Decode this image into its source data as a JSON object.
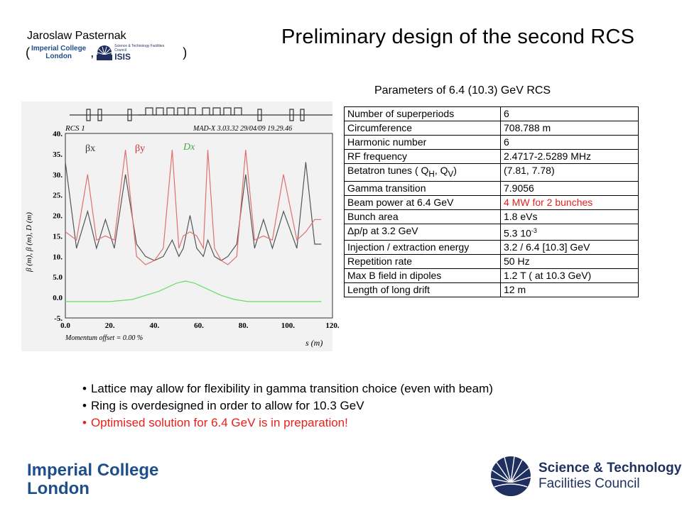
{
  "header": {
    "author": "Jaroslaw Pasternak",
    "open_paren": "(",
    "comma": ",",
    "close_paren": ")",
    "mini_logo_ic_line1": "Imperial College",
    "mini_logo_ic_line2": "London",
    "mini_logo_stfc_line1": "Science & Technology Facilities Council",
    "mini_logo_stfc_line2": "ISIS",
    "title": "Preliminary design of the second RCS"
  },
  "plot": {
    "top_left_label": "RCS 1",
    "top_right_label": "MAD-X 3.03.32  29/04/09 19.29.46",
    "ylabel": "β (m), β (m), D (m)",
    "xlabel": "s (m)",
    "legend_bx": "βx",
    "legend_by": "βy",
    "legend_dx": "Dx",
    "momentum_offset": "Momentum offset =    0.00 %",
    "colors": {
      "bx": "#555555",
      "by": "#e07070",
      "dx": "#66dd66"
    }
  },
  "chart_data": {
    "type": "line",
    "x_ticks": [
      "0.0",
      "20.",
      "40.",
      "60.",
      "80.",
      "100.",
      "120."
    ],
    "y_ticks": [
      "40.",
      "35.",
      "30.",
      "25.",
      "20.",
      "15.",
      "10.",
      "5.0",
      "0.0",
      "-5."
    ],
    "xlim": [
      0,
      120
    ],
    "ylim": [
      -5,
      40
    ],
    "series": [
      {
        "name": "βx",
        "x": [
          0,
          5,
          10,
          14,
          18,
          22,
          27,
          32,
          36,
          40,
          44,
          48,
          51,
          53,
          56,
          59,
          62,
          64,
          67,
          70,
          73,
          77,
          81,
          85,
          89,
          93,
          98,
          104,
          108,
          112,
          115
        ],
        "y": [
          33,
          12,
          21,
          12,
          19,
          12,
          30,
          13,
          10,
          9,
          10,
          14,
          10,
          12,
          20,
          12,
          10,
          14,
          10,
          9,
          10,
          13,
          30,
          12,
          19,
          12,
          21,
          12,
          33,
          13,
          13
        ]
      },
      {
        "name": "βy",
        "x": [
          0,
          5,
          10,
          14,
          18,
          22,
          27,
          32,
          36,
          40,
          44,
          48,
          51,
          53,
          56,
          59,
          62,
          64,
          67,
          70,
          73,
          77,
          81,
          85,
          89,
          93,
          98,
          104,
          108,
          112,
          115
        ],
        "y": [
          16,
          14,
          30,
          14,
          15,
          14,
          36,
          10,
          8,
          9,
          12,
          36,
          12,
          15,
          16,
          15,
          12,
          36,
          12,
          9,
          8,
          10,
          36,
          14,
          15,
          14,
          30,
          14,
          16,
          19,
          19
        ]
      },
      {
        "name": "Dx",
        "x": [
          0,
          10,
          20,
          30,
          36,
          42,
          46,
          50,
          54,
          58,
          62,
          66,
          70,
          76,
          82,
          90,
          100,
          110,
          115
        ],
        "y": [
          -1,
          -1,
          -1,
          -0.5,
          0.5,
          1.5,
          2.5,
          3.5,
          4,
          3.5,
          2.5,
          1.5,
          0.5,
          -0.5,
          -1,
          -1,
          -1,
          -1,
          -1
        ]
      }
    ]
  },
  "table": {
    "rows": [
      {
        "label": "Number of superperiods",
        "value": "6"
      },
      {
        "label": "Circumference",
        "value": "708.788 m"
      },
      {
        "label": "Harmonic number",
        "value": "6"
      },
      {
        "label": "RF frequency",
        "value": "2.4717-2.5289 MHz"
      },
      {
        "label_pre": "Betatron tunes ( Q",
        "label_sub1": "H",
        "label_mid": ", Q",
        "label_sub2": "V",
        "label_post": ")",
        "value": "(7.81, 7.78)"
      },
      {
        "label": "Gamma transition",
        "value": "7.9056"
      },
      {
        "label": "Beam power at 6.4 GeV",
        "value": "4 MW for 2 bunches"
      },
      {
        "label": "Bunch area",
        "value": "1.8 eVs"
      },
      {
        "label": "Δp/p at 3.2  GeV",
        "value_base": "5.3 10",
        "value_sup": "-3"
      },
      {
        "label": "Injection / extraction energy",
        "value": "3.2 / 6.4 [10.3] GeV"
      },
      {
        "label": "Repetition rate",
        "value": "50 Hz"
      },
      {
        "label": "Max B field in dipoles",
        "value": "1.2 T ( at 10.3 GeV)"
      },
      {
        "label": "Length of long drift",
        "value": "12 m"
      }
    ],
    "params_title": "Parameters of 6.4 (10.3) GeV RCS"
  },
  "bullets": [
    "Lattice may allow for flexibility in gamma transition choice (even with beam)",
    "Ring is overdesigned in order to allow for 10.3 GeV",
    "Optimised solution for 6.4 GeV is in preparation!"
  ],
  "footer": {
    "ic_line1": "Imperial College",
    "ic_line2": "London",
    "stfc_line1": "Science & Technology",
    "stfc_line2": "Facilities Council"
  }
}
